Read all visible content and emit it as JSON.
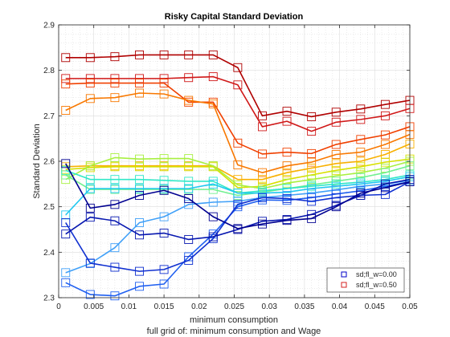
{
  "chart_data": {
    "type": "line",
    "title": "Risky Capital Standard Deviation",
    "xlabel": "minimum consumption",
    "ylabel": "Standard Deviation",
    "caption": "full grid of: minimum consumption and Wage",
    "xlim": [
      0,
      0.05
    ],
    "ylim": [
      2.3,
      2.9
    ],
    "grid": true,
    "legend_position": "bottom-right",
    "x": [
      0.001,
      0.0045,
      0.008,
      0.0115,
      0.015,
      0.0185,
      0.022,
      0.0255,
      0.029,
      0.0325,
      0.036,
      0.0395,
      0.043,
      0.0465,
      0.05
    ],
    "xticks": [
      "0",
      "0.005",
      "0.01",
      "0.015",
      "0.02",
      "0.025",
      "0.03",
      "0.035",
      "0.04",
      "0.045",
      "0.05"
    ],
    "yticks": [
      "2.3",
      "2.4",
      "2.5",
      "2.6",
      "2.7",
      "2.8",
      "2.9"
    ],
    "legend": [
      {
        "label": "sd;fl_w=0.00",
        "color": "#0000c8"
      },
      {
        "label": "sd;fl_w=0.50",
        "color": "#d42020"
      }
    ],
    "series": [
      {
        "color": "#b00000",
        "values": [
          2.828,
          2.828,
          2.83,
          2.834,
          2.834,
          2.834,
          2.834,
          2.806,
          2.7,
          2.71,
          2.698,
          2.708,
          2.715,
          2.725,
          2.734
        ]
      },
      {
        "color": "#d01818",
        "values": [
          2.782,
          2.782,
          2.782,
          2.782,
          2.782,
          2.784,
          2.786,
          2.768,
          2.676,
          2.688,
          2.666,
          2.686,
          2.692,
          2.7,
          2.716
        ]
      },
      {
        "color": "#f04000",
        "values": [
          2.77,
          2.772,
          2.772,
          2.772,
          2.772,
          2.73,
          2.73,
          2.64,
          2.616,
          2.62,
          2.617,
          2.637,
          2.648,
          2.658,
          2.676
        ]
      },
      {
        "color": "#f87800",
        "values": [
          2.712,
          2.738,
          2.74,
          2.75,
          2.748,
          2.734,
          2.726,
          2.592,
          2.575,
          2.59,
          2.598,
          2.615,
          2.62,
          2.637,
          2.659
        ]
      },
      {
        "color": "#f8b000",
        "values": [
          2.588,
          2.59,
          2.59,
          2.59,
          2.59,
          2.59,
          2.59,
          2.56,
          2.56,
          2.575,
          2.585,
          2.595,
          2.6,
          2.615,
          2.638
        ]
      },
      {
        "color": "#d8e000",
        "values": [
          2.582,
          2.586,
          2.588,
          2.588,
          2.588,
          2.588,
          2.588,
          2.542,
          2.545,
          2.56,
          2.57,
          2.58,
          2.588,
          2.598,
          2.605
        ]
      },
      {
        "color": "#a8f040",
        "values": [
          2.56,
          2.59,
          2.608,
          2.605,
          2.606,
          2.606,
          2.59,
          2.548,
          2.54,
          2.552,
          2.56,
          2.568,
          2.575,
          2.585,
          2.6
        ]
      },
      {
        "color": "#70f090",
        "values": [
          2.57,
          2.538,
          2.538,
          2.538,
          2.538,
          2.538,
          2.538,
          2.525,
          2.532,
          2.54,
          2.548,
          2.556,
          2.564,
          2.575,
          2.59
        ]
      },
      {
        "color": "#30e8c8",
        "values": [
          2.58,
          2.56,
          2.56,
          2.56,
          2.558,
          2.556,
          2.556,
          2.53,
          2.535,
          2.54,
          2.545,
          2.55,
          2.554,
          2.56,
          2.57
        ]
      },
      {
        "color": "#20c8f0",
        "values": [
          2.482,
          2.54,
          2.54,
          2.54,
          2.54,
          2.54,
          2.55,
          2.53,
          2.53,
          2.532,
          2.54,
          2.545,
          2.55,
          2.556,
          2.566
        ]
      },
      {
        "color": "#40a0f8",
        "values": [
          2.355,
          2.375,
          2.41,
          2.465,
          2.478,
          2.505,
          2.51,
          2.512,
          2.52,
          2.525,
          2.53,
          2.537,
          2.545,
          2.55,
          2.558
        ]
      },
      {
        "color": "#2060f0",
        "values": [
          2.333,
          2.307,
          2.304,
          2.325,
          2.33,
          2.39,
          2.44,
          2.5,
          2.515,
          2.514,
          2.52,
          2.528,
          2.535,
          2.545,
          2.555
        ]
      },
      {
        "color": "#1030d0",
        "values": [
          2.465,
          2.376,
          2.367,
          2.358,
          2.362,
          2.382,
          2.43,
          2.505,
          2.52,
          2.518,
          2.512,
          2.52,
          2.525,
          2.527,
          2.555
        ]
      },
      {
        "color": "#0818b0",
        "values": [
          2.44,
          2.477,
          2.469,
          2.438,
          2.442,
          2.428,
          2.434,
          2.45,
          2.468,
          2.472,
          2.483,
          2.503,
          2.525,
          2.55,
          2.56
        ]
      },
      {
        "color": "#000090",
        "values": [
          2.595,
          2.497,
          2.505,
          2.525,
          2.536,
          2.518,
          2.478,
          2.452,
          2.462,
          2.47,
          2.474,
          2.5,
          2.53,
          2.542,
          2.555
        ]
      }
    ]
  }
}
